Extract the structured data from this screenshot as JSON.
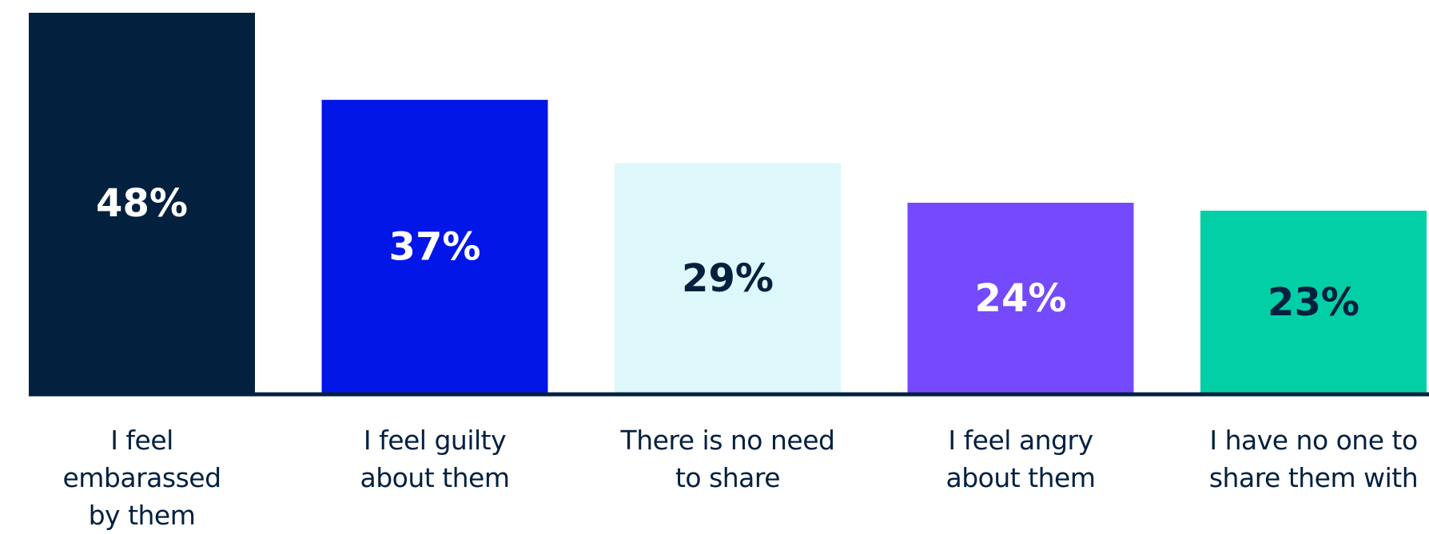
{
  "chart_data": {
    "type": "bar",
    "categories": [
      "I feel embarassed by them",
      "I feel guilty about them",
      "There is no need to share",
      "I feel angry about them",
      "I have no one to share them with"
    ],
    "values": [
      48,
      37,
      29,
      24,
      23
    ],
    "value_labels": [
      "48%",
      "37%",
      "29%",
      "24%",
      "23%"
    ],
    "label_lines": [
      [
        "I feel",
        "embarassed",
        "by them"
      ],
      [
        "I feel guilty",
        "about them"
      ],
      [
        "There is no need",
        "to share"
      ],
      [
        "I feel angry",
        "about them"
      ],
      [
        "I have no one to",
        "share them with"
      ]
    ],
    "bar_colors": [
      "#03203f",
      "#0316e8",
      "#def7fb",
      "#7549fc",
      "#03cfa6"
    ],
    "value_text_colors": [
      "#ffffff",
      "#ffffff",
      "#03203f",
      "#ffffff",
      "#03203f"
    ],
    "baseline_color": "#03203f",
    "grid": false,
    "ylim": [
      0,
      48
    ]
  }
}
